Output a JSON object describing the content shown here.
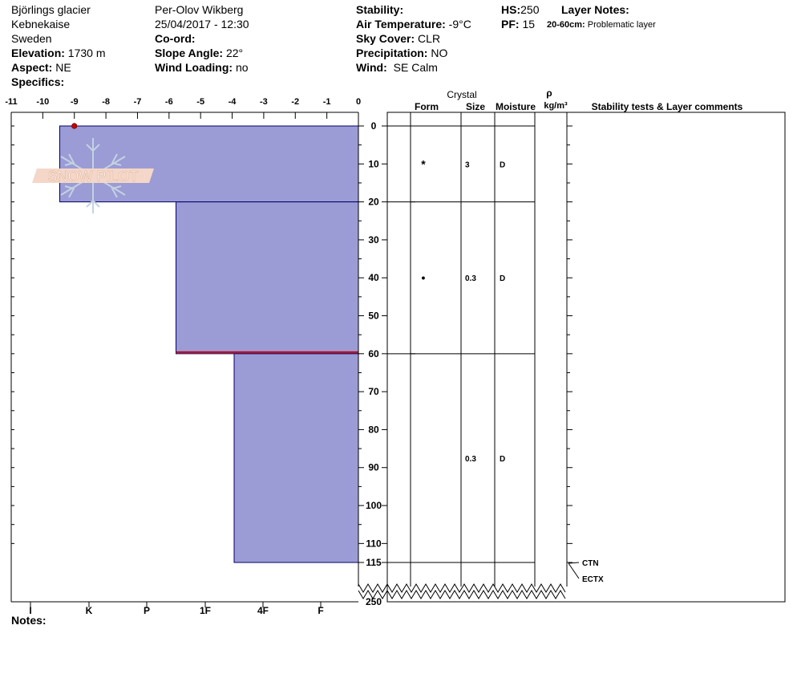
{
  "header": {
    "location": "Björlings glacier",
    "region": "Kebnekaise",
    "country": "Sweden",
    "elevation_label": "Elevation:",
    "elevation_value": "1730 m",
    "aspect_label": "Aspect:",
    "aspect_value": "NE",
    "specifics_label": "Specifics:",
    "observer": "Per-Olov Wikberg",
    "datetime": "25/04/2017 - 12:30",
    "coord_label": "Co-ord:",
    "slope_label": "Slope Angle:",
    "slope_value": "22°",
    "wind_loading_label": "Wind Loading:",
    "wind_loading_value": "no",
    "stability_label": "Stability:",
    "air_temp_label": "Air Temperature:",
    "air_temp_value": "-9°C",
    "sky_label": "Sky Cover:",
    "sky_value": "CLR",
    "precip_label": "Precipitation:",
    "precip_value": "NO",
    "wind_label": "Wind:",
    "wind_value": "SE  Calm",
    "hs_label": "HS:",
    "hs_value": "250",
    "pf_label": "PF:",
    "pf_value": "15",
    "layer_notes_label": "Layer Notes:",
    "layer_note_range": "20-60cm:",
    "layer_note_text": "Problematic layer"
  },
  "logo": {
    "text": "SNOW PILOT"
  },
  "notes_label": "Notes:",
  "colors": {
    "hardness_fill": "#9b9bd6",
    "problem_line": "#cc0000",
    "temp_point": "#cc0000"
  },
  "chart_data": {
    "type": "bar",
    "temperature_axis": {
      "ticks": [
        "-11",
        "-10",
        "-9",
        "-8",
        "-7",
        "-6",
        "-5",
        "-4",
        "-3",
        "-2",
        "-1",
        "0"
      ],
      "range": [
        -11,
        0
      ]
    },
    "hardness_axis": {
      "ticks": [
        "I",
        "K",
        "P",
        "1F",
        "4F",
        "F"
      ]
    },
    "depth_axis": {
      "ticks": [
        "0",
        "10",
        "20",
        "30",
        "40",
        "50",
        "60",
        "70",
        "80",
        "90",
        "100",
        "110",
        "115",
        "250"
      ],
      "range_cm": [
        0,
        115
      ],
      "break_at": 115,
      "bottom": 250
    },
    "temperature_profile": [
      {
        "temp": -9,
        "depth": 0
      }
    ],
    "layers": [
      {
        "top": 0,
        "bottom": 20,
        "hardness_index": 0.5,
        "form": "*",
        "size": "3",
        "moisture": "D"
      },
      {
        "top": 20,
        "bottom": 60,
        "hardness_index": 2.5,
        "form": "•",
        "size": "0.3",
        "moisture": "D"
      },
      {
        "top": 60,
        "bottom": 115,
        "hardness_index": 3.5,
        "form": "",
        "size": "0.3",
        "moisture": "D"
      }
    ],
    "problem_layer_depth": 60,
    "columns": {
      "crystal": "Crystal",
      "form": "Form",
      "size": "Size",
      "moisture": "Moisture",
      "rho": "ρ",
      "density_unit": "kg/m³",
      "comments": "Stability tests & Layer comments"
    },
    "stability_tests": [
      {
        "label": "CTN",
        "depth": 115
      },
      {
        "label": "ECTX",
        "depth": 115
      }
    ]
  }
}
